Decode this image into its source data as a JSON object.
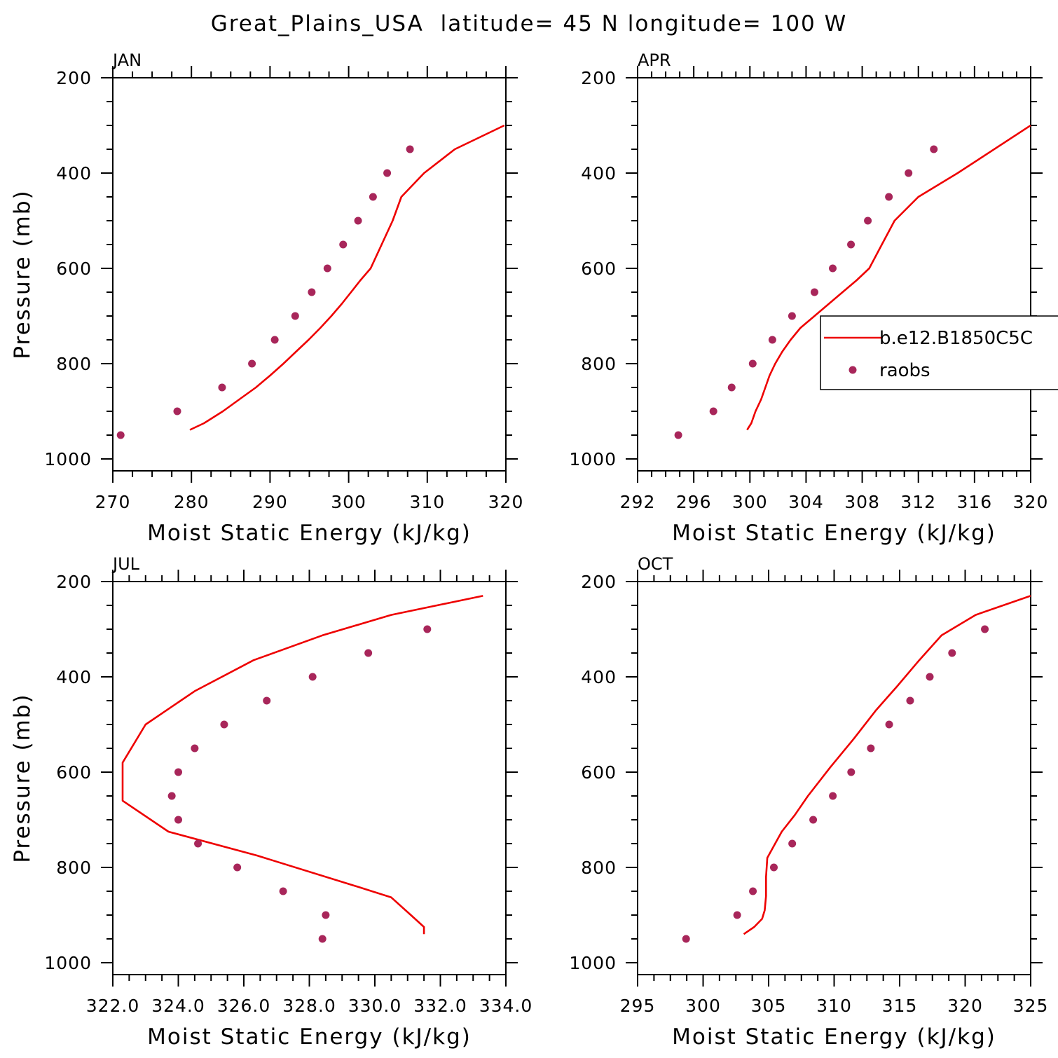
{
  "title": "Great_Plains_USA  latitude= 45 N longitude= 100 W",
  "colors": {
    "model": "#ee0000",
    "obs": "#a8265a"
  },
  "legend": {
    "model_label": "b.e12.B1850C5C",
    "obs_label": "raobs"
  },
  "chart_data": [
    {
      "type": "line",
      "panel": "JAN",
      "xlabel": "Moist Static Energy (kJ/kg)",
      "ylabel": "Pressure (mb)",
      "xlim": [
        270,
        320
      ],
      "ylim": [
        1025,
        200
      ],
      "xticks": [
        270,
        280,
        290,
        300,
        310,
        320
      ],
      "xtick_labels": [
        "270",
        "280",
        "290",
        "300",
        "310",
        "320"
      ],
      "yticks": [
        200,
        400,
        600,
        800,
        1000
      ],
      "ytick_labels": [
        "200",
        "400",
        "600",
        "800",
        "1000"
      ],
      "series": [
        {
          "name": "b.e12.B1850C5C",
          "mode": "line",
          "x": [
            279.8,
            281.6,
            284,
            286.1,
            288.2,
            290,
            291.7,
            293.3,
            294.9,
            296.4,
            297.8,
            299.1,
            300.3,
            301.5,
            302.8,
            304.2,
            305.6,
            306.7,
            309.6,
            313.5,
            319.8
          ],
          "y": [
            939,
            925,
            900,
            875,
            850,
            825,
            800,
            775,
            750,
            725,
            700,
            675,
            650,
            625,
            600,
            550,
            500,
            450,
            400,
            350,
            300
          ]
        },
        {
          "name": "raobs",
          "mode": "markers",
          "x": [
            271,
            278.2,
            283.9,
            287.7,
            290.6,
            293.2,
            295.3,
            297.3,
            299.3,
            301.2,
            303.1,
            304.9,
            307.8
          ],
          "y": [
            950,
            900,
            850,
            800,
            750,
            700,
            650,
            600,
            550,
            500,
            450,
            400,
            350
          ]
        }
      ]
    },
    {
      "type": "line",
      "panel": "APR",
      "xlabel": "Moist Static Energy (kJ/kg)",
      "ylabel": "",
      "xlim": [
        292,
        320
      ],
      "ylim": [
        1025,
        200
      ],
      "xticks": [
        292,
        296,
        300,
        304,
        308,
        312,
        316,
        320
      ],
      "xtick_labels": [
        "292",
        "296",
        "300",
        "304",
        "308",
        "312",
        "316",
        "320"
      ],
      "yticks": [
        200,
        400,
        600,
        800,
        1000
      ],
      "ytick_labels": [
        "200",
        "400",
        "600",
        "800",
        "1000"
      ],
      "series": [
        {
          "name": "b.e12.B1850C5C",
          "mode": "line",
          "x": [
            299.8,
            300.1,
            300.4,
            300.8,
            301.1,
            301.4,
            301.8,
            302.3,
            302.9,
            303.6,
            304.6,
            305.6,
            306.6,
            307.6,
            308.5,
            309.4,
            310.3,
            312.0,
            314.8,
            320.0
          ],
          "y": [
            939,
            925,
            900,
            875,
            850,
            825,
            800,
            775,
            750,
            725,
            700,
            675,
            650,
            625,
            600,
            550,
            500,
            450,
            400,
            300
          ]
        },
        {
          "name": "raobs",
          "mode": "markers",
          "x": [
            294.9,
            297.4,
            298.7,
            300.2,
            301.6,
            303.0,
            304.6,
            305.9,
            307.2,
            308.4,
            309.9,
            311.3,
            313.1
          ],
          "y": [
            950,
            900,
            850,
            800,
            750,
            700,
            650,
            600,
            550,
            500,
            450,
            400,
            350
          ]
        }
      ]
    },
    {
      "type": "line",
      "panel": "JUL",
      "xlabel": "Moist Static Energy (kJ/kg)",
      "ylabel": "Pressure (mb)",
      "xlim": [
        322,
        334
      ],
      "ylim": [
        1025,
        200
      ],
      "xticks": [
        322,
        324,
        326,
        328,
        330,
        332,
        334
      ],
      "xtick_labels": [
        "322.0",
        "324.0",
        "326.0",
        "328.0",
        "330.0",
        "332.0",
        "334.0"
      ],
      "yticks": [
        200,
        400,
        600,
        800,
        1000
      ],
      "ytick_labels": [
        "200",
        "400",
        "600",
        "800",
        "1000"
      ],
      "series": [
        {
          "name": "b.e12.B1850C5C",
          "mode": "line",
          "x": [
            331.5,
            331.5,
            331.1,
            330.5,
            329.5,
            326.4,
            323.7,
            322.3,
            322.3,
            323.0,
            324.5,
            326.3,
            328.4,
            330.5,
            333.3
          ],
          "y": [
            940,
            925,
            900,
            863,
            841,
            775,
            725,
            660,
            580,
            500,
            430,
            365,
            313,
            270,
            230
          ]
        },
        {
          "name": "raobs",
          "mode": "markers",
          "x": [
            328.4,
            328.5,
            327.2,
            325.8,
            324.6,
            324.0,
            323.8,
            324.0,
            324.5,
            325.4,
            326.7,
            328.1,
            329.8,
            331.6
          ],
          "y": [
            950,
            900,
            850,
            800,
            750,
            700,
            650,
            600,
            550,
            500,
            450,
            400,
            350,
            300
          ]
        }
      ]
    },
    {
      "type": "line",
      "panel": "OCT",
      "xlabel": "Moist Static Energy (kJ/kg)",
      "ylabel": "",
      "xlim": [
        295,
        325
      ],
      "ylim": [
        1025,
        200
      ],
      "xticks": [
        295,
        300,
        305,
        310,
        315,
        320,
        325
      ],
      "xtick_labels": [
        "295",
        "300",
        "305",
        "310",
        "315",
        "320",
        "325"
      ],
      "yticks": [
        200,
        400,
        600,
        800,
        1000
      ],
      "ytick_labels": [
        "200",
        "400",
        "600",
        "800",
        "1000"
      ],
      "series": [
        {
          "name": "b.e12.B1850C5C",
          "mode": "line",
          "x": [
            303.1,
            303.9,
            304.5,
            304.7,
            304.8,
            304.8,
            304.9,
            305.5,
            306.0,
            307.0,
            308.0,
            309.7,
            311.5,
            313.2,
            314.8,
            316.5,
            318.2,
            320.8,
            325.0
          ],
          "y": [
            940,
            925,
            908,
            890,
            860,
            820,
            780,
            750,
            725,
            690,
            650,
            590,
            530,
            470,
            420,
            365,
            313,
            270,
            230
          ]
        },
        {
          "name": "raobs",
          "mode": "markers",
          "x": [
            298.7,
            302.6,
            303.8,
            305.4,
            306.8,
            308.4,
            309.9,
            311.3,
            312.8,
            314.2,
            315.8,
            317.3,
            319.0,
            321.5
          ],
          "y": [
            950,
            900,
            850,
            800,
            750,
            700,
            650,
            600,
            550,
            500,
            450,
            400,
            350,
            300
          ]
        }
      ]
    }
  ]
}
